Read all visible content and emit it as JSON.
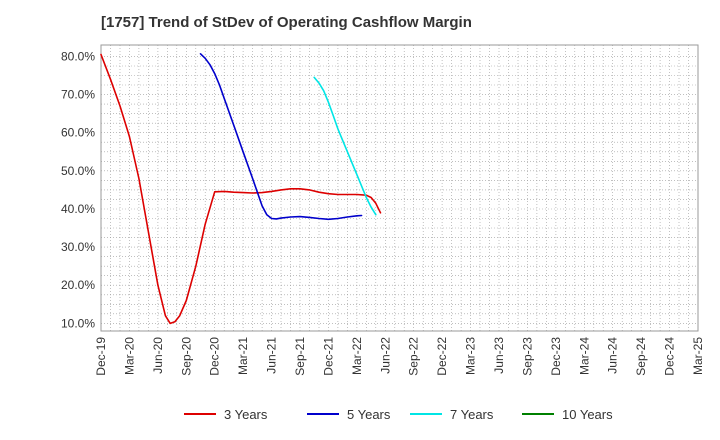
{
  "chart_data": {
    "type": "line",
    "title": "[1757]  Trend of StDev of Operating Cashflow Margin",
    "xlabel": "",
    "ylabel": "",
    "x_ticks": [
      "Dec-19",
      "Mar-20",
      "Jun-20",
      "Sep-20",
      "Dec-20",
      "Mar-21",
      "Jun-21",
      "Sep-21",
      "Dec-21",
      "Mar-22",
      "Jun-22",
      "Sep-22",
      "Dec-22",
      "Mar-23",
      "Jun-23",
      "Sep-23",
      "Dec-23",
      "Mar-24",
      "Jun-24",
      "Sep-24",
      "Dec-24",
      "Mar-25"
    ],
    "y_ticks": [
      "10.0%",
      "20.0%",
      "30.0%",
      "40.0%",
      "50.0%",
      "60.0%",
      "70.0%",
      "80.0%"
    ],
    "y_tick_values": [
      10,
      20,
      30,
      40,
      50,
      60,
      70,
      80
    ],
    "ylim": [
      8,
      83
    ],
    "grid": true,
    "legend_position": "bottom",
    "series": [
      {
        "name": "3 Years",
        "color": "#dd0000",
        "values": [
          [
            0,
            80.5
          ],
          [
            1,
            74
          ],
          [
            2,
            67
          ],
          [
            3,
            59
          ],
          [
            4,
            48
          ],
          [
            5,
            34
          ],
          [
            6,
            20
          ],
          [
            6.8,
            12
          ],
          [
            7.3,
            10
          ],
          [
            7.8,
            10.4
          ],
          [
            8.3,
            12
          ],
          [
            9,
            16
          ],
          [
            10,
            25
          ],
          [
            11,
            36
          ],
          [
            12,
            44.5
          ],
          [
            13,
            44.6
          ],
          [
            14,
            44.4
          ],
          [
            15,
            44.3
          ],
          [
            16,
            44.2
          ],
          [
            17,
            44.3
          ],
          [
            18,
            44.6
          ],
          [
            19,
            45
          ],
          [
            20,
            45.3
          ],
          [
            21,
            45.3
          ],
          [
            22,
            45
          ],
          [
            23,
            44.4
          ],
          [
            24,
            44
          ],
          [
            25,
            43.8
          ],
          [
            26,
            43.8
          ],
          [
            27,
            43.8
          ],
          [
            28,
            43.6
          ],
          [
            28.5,
            43
          ],
          [
            29,
            41.5
          ],
          [
            29.5,
            39
          ]
        ]
      },
      {
        "name": "5 Years",
        "color": "#0000cc",
        "values": [
          [
            10.5,
            80.7
          ],
          [
            11,
            79.5
          ],
          [
            11.5,
            77.8
          ],
          [
            12,
            75.5
          ],
          [
            12.5,
            72.5
          ],
          [
            13,
            69
          ],
          [
            14,
            62
          ],
          [
            15,
            55
          ],
          [
            16,
            48
          ],
          [
            17,
            40.8
          ],
          [
            17.5,
            38.5
          ],
          [
            18,
            37.5
          ],
          [
            18.5,
            37.4
          ],
          [
            19,
            37.6
          ],
          [
            20,
            37.9
          ],
          [
            21,
            38
          ],
          [
            22,
            37.8
          ],
          [
            23,
            37.5
          ],
          [
            24,
            37.3
          ],
          [
            25,
            37.5
          ],
          [
            26,
            37.9
          ],
          [
            27,
            38.2
          ],
          [
            27.5,
            38.3
          ]
        ]
      },
      {
        "name": "7 Years",
        "color": "#00e5e5",
        "values": [
          [
            22.5,
            74.5
          ],
          [
            23,
            73
          ],
          [
            23.5,
            71
          ],
          [
            24,
            68
          ],
          [
            24.5,
            64.5
          ],
          [
            25,
            61
          ],
          [
            26,
            55
          ],
          [
            27,
            49
          ],
          [
            28,
            43
          ],
          [
            28.5,
            40.5
          ],
          [
            29,
            38.5
          ]
        ]
      },
      {
        "name": "10 Years",
        "color": "#008000",
        "values": []
      }
    ]
  }
}
